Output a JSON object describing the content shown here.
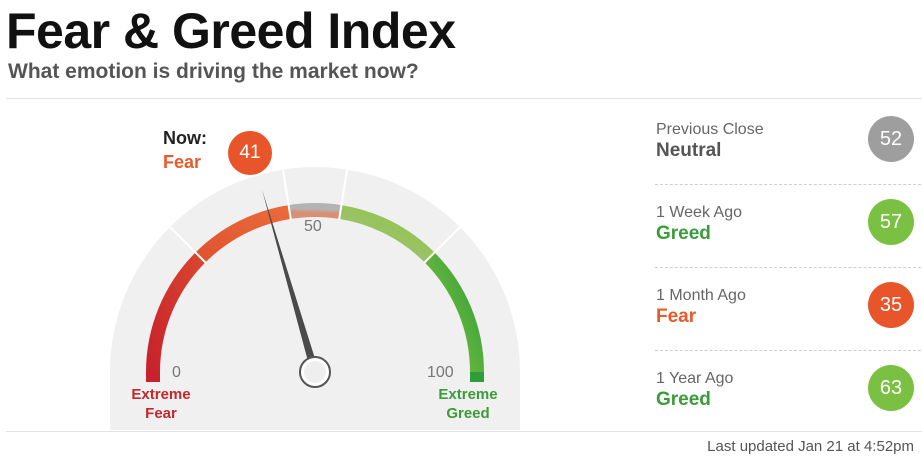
{
  "header": {
    "title": "Fear & Greed Index",
    "subtitle": "What emotion is driving the market now?"
  },
  "gauge": {
    "now_label": "Now:",
    "now_status": "Fear",
    "now_value": "41",
    "value": 41,
    "min": 0,
    "max": 100,
    "tick_min": "0",
    "tick_mid": "50",
    "tick_max": "100",
    "left_band": {
      "line1": "Extreme",
      "line2": "Fear"
    },
    "right_band": {
      "line1": "Extreme",
      "line2": "Greed"
    }
  },
  "history": [
    {
      "period": "Previous Close",
      "status": "Neutral",
      "value": "52",
      "color": "#9e9e9e",
      "status_color": "#555555"
    },
    {
      "period": "1 Week Ago",
      "status": "Greed",
      "value": "57",
      "color": "#7ac143",
      "status_color": "#3a9c3a"
    },
    {
      "period": "1 Month Ago",
      "status": "Fear",
      "value": "35",
      "color": "#e8552a",
      "status_color": "#e85a2a"
    },
    {
      "period": "1 Year Ago",
      "status": "Greed",
      "value": "63",
      "color": "#7ac143",
      "status_color": "#3a9c3a"
    }
  ],
  "footer": {
    "last_updated": "Last updated Jan 21 at 4:52pm"
  },
  "colors": {
    "extreme_fear": "#c8232c",
    "fear": "#ea6a3a",
    "neutral": "#b3b3b3",
    "greed": "#8cc63f",
    "extreme_greed": "#2e9e3a"
  }
}
